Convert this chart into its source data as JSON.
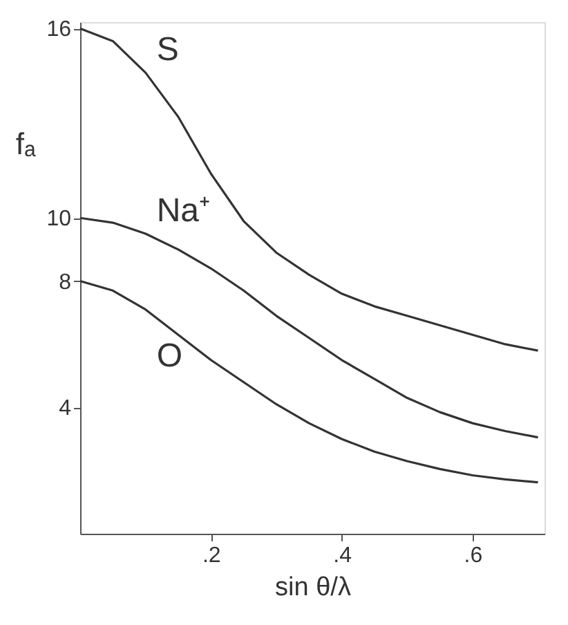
{
  "chart_data": {
    "type": "line",
    "xlabel": "sin θ/λ",
    "ylabel": "fₐ",
    "x": [
      0,
      0.05,
      0.1,
      0.15,
      0.2,
      0.25,
      0.3,
      0.35,
      0.4,
      0.45,
      0.5,
      0.55,
      0.6,
      0.65,
      0.7
    ],
    "series": [
      {
        "name": "S",
        "color": "#333333",
        "values": [
          16,
          15.6,
          14.6,
          13.2,
          11.4,
          9.9,
          8.9,
          8.2,
          7.6,
          7.2,
          6.9,
          6.6,
          6.3,
          6.0,
          5.8
        ]
      },
      {
        "name": "Na⁺",
        "color": "#333333",
        "values": [
          10,
          9.85,
          9.5,
          9.0,
          8.4,
          7.7,
          6.9,
          6.2,
          5.5,
          4.9,
          4.3,
          3.85,
          3.5,
          3.25,
          3.05
        ]
      },
      {
        "name": "O",
        "color": "#333333",
        "values": [
          8,
          7.7,
          7.1,
          6.3,
          5.5,
          4.8,
          4.1,
          3.5,
          3.0,
          2.6,
          2.3,
          2.05,
          1.85,
          1.72,
          1.63
        ]
      }
    ],
    "xlim": [
      0,
      0.71
    ],
    "ylim": [
      0,
      16.2
    ],
    "xticks": [
      {
        "value": 0.2,
        "label": ".2"
      },
      {
        "value": 0.4,
        "label": ".4"
      },
      {
        "value": 0.6,
        "label": ".6"
      }
    ],
    "yticks": [
      4,
      8,
      10,
      16
    ],
    "grid": false,
    "legend": false,
    "marker": "none",
    "line_style": "solid"
  }
}
